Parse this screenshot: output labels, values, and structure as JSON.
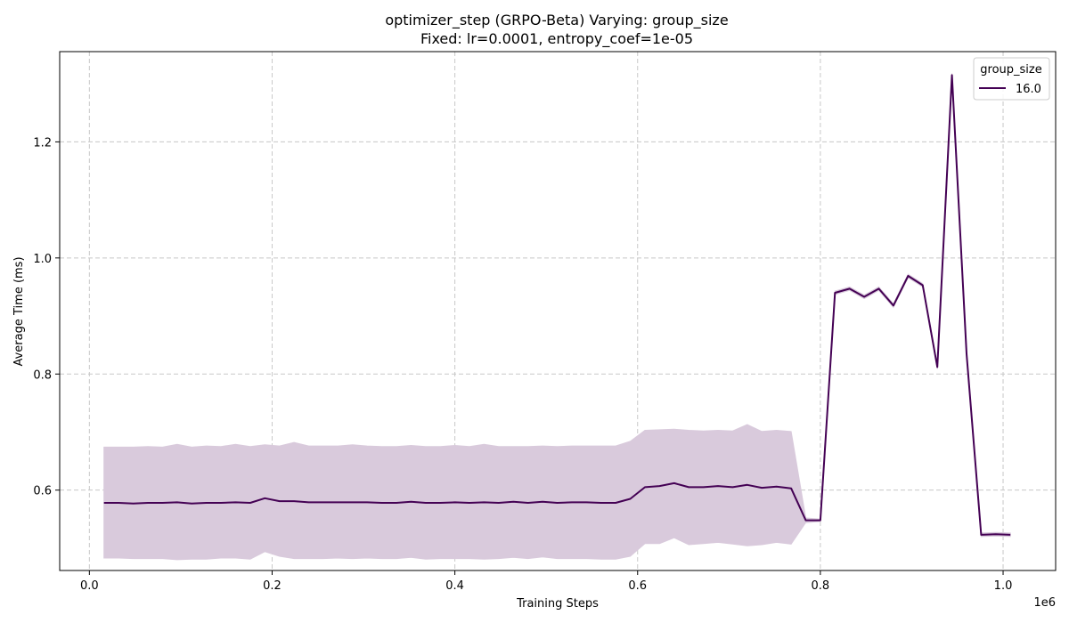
{
  "chart_data": {
    "type": "line",
    "title": "optimizer_step (GRPO-Beta) Varying: group_size",
    "subtitle": "Fixed: lr=0.0001, entropy_coef=1e-05",
    "xlabel": "Training Steps",
    "ylabel": "Average Time (ms)",
    "x_scale_label": "1e6",
    "xlim": [
      -0.0325,
      1.0575
    ],
    "ylim": [
      0.4615,
      1.3555
    ],
    "x_ticks": [
      0.0,
      0.2,
      0.4,
      0.6,
      0.8,
      1.0
    ],
    "x_tick_labels": [
      "0.0",
      "0.2",
      "0.4",
      "0.6",
      "0.8",
      "1.0"
    ],
    "y_ticks": [
      0.6,
      0.8,
      1.0,
      1.2
    ],
    "y_tick_labels": [
      "0.6",
      "0.8",
      "1.0",
      "1.2"
    ],
    "grid": true,
    "legend": {
      "title": "group_size",
      "placement": "top-right"
    },
    "series": [
      {
        "name": "16.0",
        "color": "#440154",
        "band_color": "#d9cadc",
        "x": [
          0.016,
          0.032,
          0.048,
          0.064,
          0.08,
          0.096,
          0.112,
          0.128,
          0.144,
          0.16,
          0.176,
          0.192,
          0.208,
          0.224,
          0.24,
          0.256,
          0.272,
          0.288,
          0.304,
          0.32,
          0.336,
          0.352,
          0.368,
          0.384,
          0.4,
          0.416,
          0.432,
          0.448,
          0.464,
          0.48,
          0.496,
          0.512,
          0.528,
          0.544,
          0.56,
          0.576,
          0.592,
          0.608,
          0.624,
          0.64,
          0.656,
          0.672,
          0.688,
          0.704,
          0.72,
          0.736,
          0.752,
          0.768,
          0.784,
          0.8,
          0.816,
          0.832,
          0.848,
          0.864,
          0.88,
          0.896,
          0.912,
          0.928,
          0.944,
          0.96,
          0.976,
          0.992,
          1.008
        ],
        "mean": [
          0.578,
          0.578,
          0.577,
          0.578,
          0.578,
          0.579,
          0.577,
          0.578,
          0.578,
          0.579,
          0.578,
          0.586,
          0.581,
          0.581,
          0.579,
          0.579,
          0.579,
          0.579,
          0.579,
          0.578,
          0.578,
          0.58,
          0.578,
          0.578,
          0.579,
          0.578,
          0.579,
          0.578,
          0.58,
          0.578,
          0.58,
          0.578,
          0.579,
          0.579,
          0.578,
          0.578,
          0.585,
          0.605,
          0.607,
          0.612,
          0.605,
          0.605,
          0.607,
          0.605,
          0.609,
          0.604,
          0.606,
          0.603,
          0.548,
          0.548,
          0.94,
          0.947,
          0.933,
          0.947,
          0.918,
          0.969,
          0.953,
          0.812,
          1.315,
          0.835,
          0.523,
          0.524,
          0.523
        ],
        "upper": [
          0.674,
          0.674,
          0.674,
          0.675,
          0.674,
          0.679,
          0.674,
          0.676,
          0.675,
          0.679,
          0.675,
          0.678,
          0.676,
          0.682,
          0.676,
          0.676,
          0.676,
          0.678,
          0.676,
          0.675,
          0.675,
          0.677,
          0.675,
          0.675,
          0.677,
          0.675,
          0.679,
          0.675,
          0.675,
          0.675,
          0.676,
          0.675,
          0.676,
          0.676,
          0.676,
          0.676,
          0.684,
          0.703,
          0.704,
          0.705,
          0.703,
          0.702,
          0.703,
          0.702,
          0.713,
          0.701,
          0.703,
          0.701,
          0.552,
          0.55,
          0.943,
          0.95,
          0.936,
          0.95,
          0.921,
          0.972,
          0.956,
          0.815,
          1.318,
          0.838,
          0.526,
          0.527,
          0.526
        ],
        "lower": [
          0.483,
          0.483,
          0.482,
          0.482,
          0.482,
          0.48,
          0.481,
          0.481,
          0.483,
          0.483,
          0.481,
          0.494,
          0.486,
          0.482,
          0.482,
          0.482,
          0.483,
          0.482,
          0.483,
          0.482,
          0.482,
          0.484,
          0.481,
          0.482,
          0.482,
          0.482,
          0.481,
          0.482,
          0.484,
          0.482,
          0.485,
          0.482,
          0.482,
          0.482,
          0.481,
          0.481,
          0.486,
          0.508,
          0.508,
          0.518,
          0.506,
          0.508,
          0.51,
          0.507,
          0.504,
          0.506,
          0.51,
          0.507,
          0.544,
          0.546,
          0.937,
          0.944,
          0.93,
          0.944,
          0.915,
          0.966,
          0.95,
          0.809,
          1.312,
          0.832,
          0.52,
          0.521,
          0.52
        ]
      }
    ]
  }
}
